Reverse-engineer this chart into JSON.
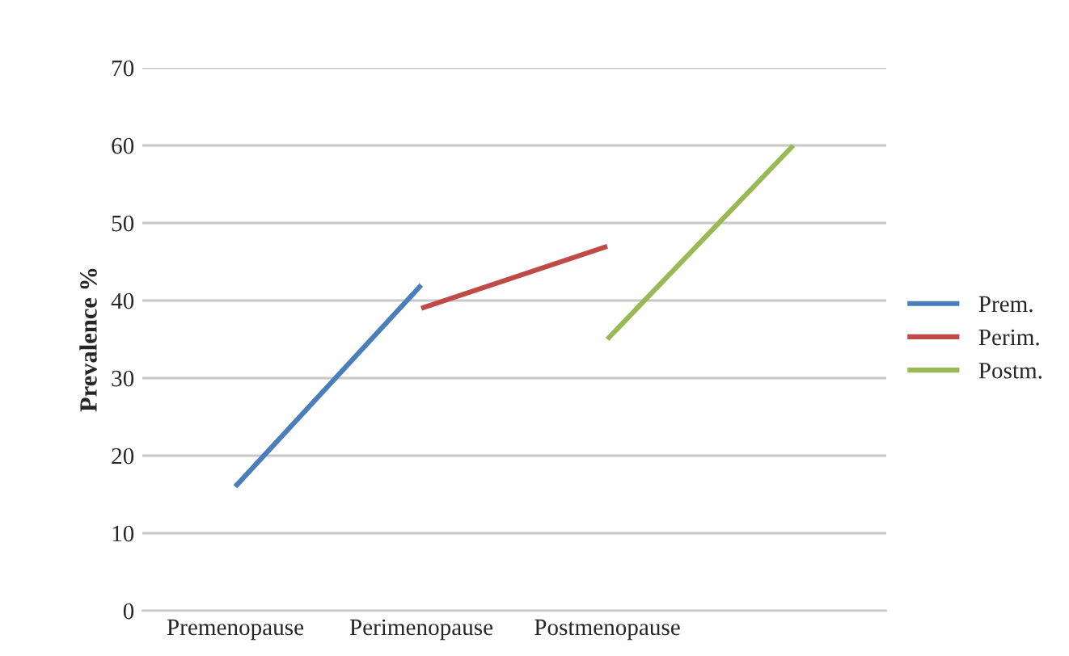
{
  "chart_data": {
    "type": "line",
    "ylabel": "Prevalence %",
    "categories": [
      "Premenopause",
      "Perimenopause",
      "Postmenopause",
      null
    ],
    "series": [
      {
        "name": "Prem.",
        "color": "#4a7ebb",
        "values": [
          16,
          42,
          null,
          null
        ]
      },
      {
        "name": "Perim.",
        "color": "#be4b48",
        "values": [
          null,
          39,
          47,
          null
        ]
      },
      {
        "name": "Postm.",
        "color": "#98b954",
        "values": [
          null,
          null,
          35,
          60
        ]
      }
    ],
    "ylim": [
      0,
      70
    ],
    "yticks": [
      0,
      10,
      20,
      30,
      40,
      50,
      60,
      70
    ],
    "grid": "y",
    "legend": "right",
    "marker": "none",
    "line_style": "solid"
  }
}
